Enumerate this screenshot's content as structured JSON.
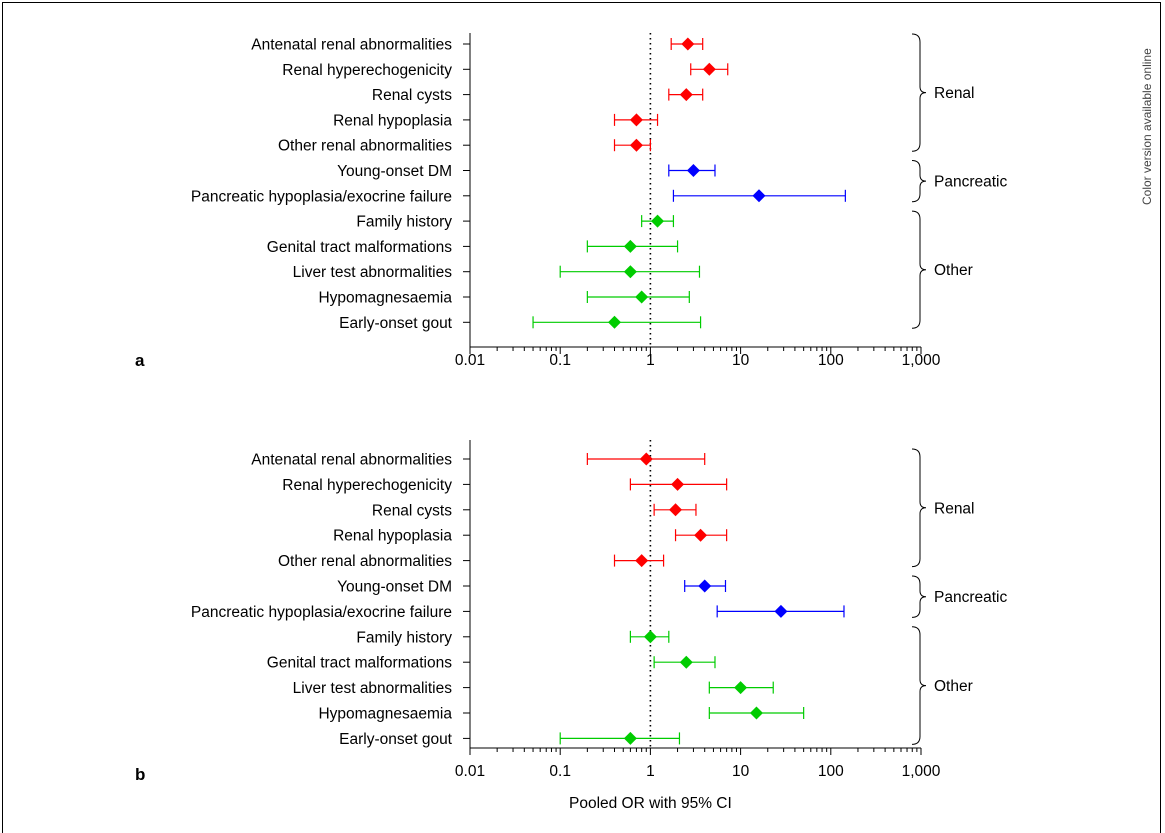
{
  "side_note": "Color version available online",
  "colors": {
    "Renal": "#ff0000",
    "Pancreatic": "#0000ff",
    "Other": "#00cc00",
    "axis": "#000000"
  },
  "x_axis": {
    "scale": "log",
    "ticks": [
      0.01,
      0.1,
      1,
      10,
      100,
      1000
    ],
    "tick_labels": [
      "0.01",
      "0.1",
      "1",
      "10",
      "100",
      "1,000"
    ]
  },
  "xlabel": "Pooled OR with 95% CI",
  "groups": [
    {
      "name": "Renal",
      "rows": [
        0,
        4
      ]
    },
    {
      "name": "Pancreatic",
      "rows": [
        5,
        6
      ]
    },
    {
      "name": "Other",
      "rows": [
        7,
        11
      ]
    }
  ],
  "chart_data": [
    {
      "type": "forest",
      "panel_label": "a",
      "x_scale": "log",
      "xlim": [
        0.01,
        1000
      ],
      "reference_line": 1,
      "categories": [
        "Antenatal renal abnormalities",
        "Renal hyperechogenicity",
        "Renal cysts",
        "Renal hypoplasia",
        "Other renal abnormalities",
        "Young-onset DM",
        "Pancreatic hypoplasia/exocrine failure",
        "Family history",
        "Genital tract malformations",
        "Liver test abnormalities",
        "Hypomagnesaemia",
        "Early-onset gout"
      ],
      "group": [
        "Renal",
        "Renal",
        "Renal",
        "Renal",
        "Renal",
        "Pancreatic",
        "Pancreatic",
        "Other",
        "Other",
        "Other",
        "Other",
        "Other"
      ],
      "or": [
        2.6,
        4.5,
        2.5,
        0.7,
        0.7,
        3.0,
        16,
        1.2,
        0.6,
        0.6,
        0.8,
        0.4
      ],
      "ci_low": [
        1.7,
        2.8,
        1.6,
        0.4,
        0.4,
        1.6,
        1.8,
        0.8,
        0.2,
        0.1,
        0.2,
        0.05
      ],
      "ci_high": [
        3.8,
        7.2,
        3.8,
        1.2,
        1.0,
        5.2,
        145,
        1.8,
        2.0,
        3.5,
        2.7,
        3.6
      ]
    },
    {
      "type": "forest",
      "panel_label": "b",
      "x_scale": "log",
      "xlim": [
        0.01,
        1000
      ],
      "reference_line": 1,
      "xlabel": "Pooled OR with 95% CI",
      "categories": [
        "Antenatal renal abnormalities",
        "Renal hyperechogenicity",
        "Renal cysts",
        "Renal hypoplasia",
        "Other renal abnormalities",
        "Young-onset DM",
        "Pancreatic hypoplasia/exocrine failure",
        "Family history",
        "Genital tract malformations",
        "Liver test abnormalities",
        "Hypomagnesaemia",
        "Early-onset gout"
      ],
      "group": [
        "Renal",
        "Renal",
        "Renal",
        "Renal",
        "Renal",
        "Pancreatic",
        "Pancreatic",
        "Other",
        "Other",
        "Other",
        "Other",
        "Other"
      ],
      "or": [
        0.9,
        2.0,
        1.9,
        3.6,
        0.8,
        4.0,
        28,
        1.0,
        2.5,
        10,
        15,
        0.6
      ],
      "ci_low": [
        0.2,
        0.6,
        1.1,
        1.9,
        0.4,
        2.4,
        5.5,
        0.6,
        1.1,
        4.5,
        4.5,
        0.1
      ],
      "ci_high": [
        4.0,
        7.0,
        3.2,
        7.0,
        1.4,
        6.8,
        140,
        1.6,
        5.2,
        23,
        50,
        2.1
      ]
    }
  ]
}
